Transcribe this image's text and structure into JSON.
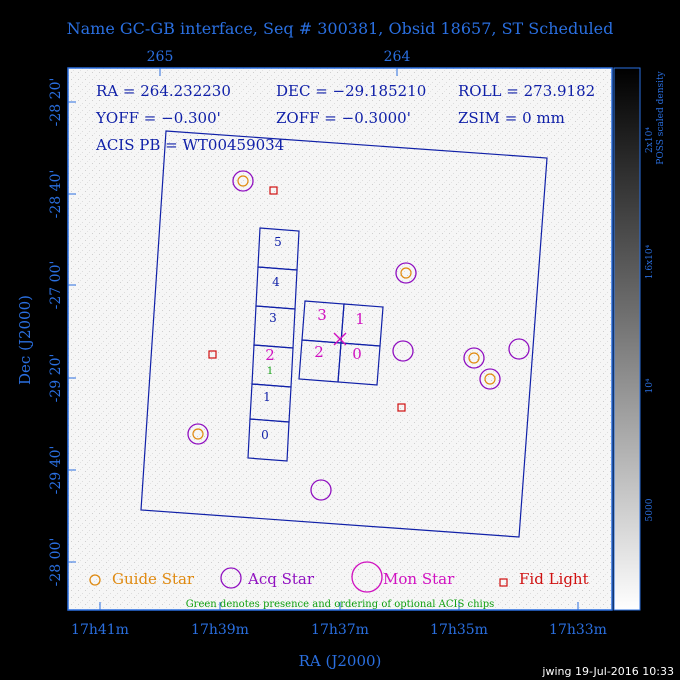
{
  "title": "Name GC-GB interface, Seq # 300381, Obsid 18657, ST Scheduled",
  "axes": {
    "top_ticks": [
      "265",
      "264"
    ],
    "left_ticks": [
      "-28 20'",
      "-28 40'",
      "-27 00'",
      "-29 20'",
      "-29 40'",
      "-28 00'"
    ],
    "bottom_ticks": [
      "17h41m",
      "17h39m",
      "17h37m",
      "17h35m",
      "17h33m"
    ],
    "xlabel": "RA (J2000)",
    "ylabel": "Dec (J2000)"
  },
  "info": {
    "ra": "RA = 264.232230",
    "dec": "DEC = −29.185210",
    "roll": "ROLL = 273.9182",
    "yoff": "YOFF = −0.300'",
    "zoff": "ZOFF = −0.3000'",
    "zsim": "ZSIM = 0 mm",
    "acis_pb": "ACIS PB = WT00459034"
  },
  "colorbar": {
    "label": "POSS scaled density",
    "ticks": [
      "2x10⁴",
      "1.6x10⁴",
      "10⁴",
      "5000"
    ]
  },
  "chips": {
    "left": [
      "5",
      "4",
      "3",
      "2",
      "1",
      "1",
      "0"
    ],
    "left_optional": "1",
    "center": [
      "3",
      "1",
      "2",
      "0"
    ]
  },
  "legend": {
    "guide": "Guide Star",
    "acq": "Acq Star",
    "mon": "Mon Star",
    "fid": "Fid Light"
  },
  "note": "Green denotes presence and ordering of optional ACIS chips",
  "credit": "jwing 19-Jul-2016 10:33",
  "colors": {
    "axis_text": "#2a6fe0",
    "info_text": "#1020a8",
    "guide": "#e08a10",
    "acq": "#9010c0",
    "mon": "#d010c0",
    "fid": "#d01010",
    "optional": "#10a010"
  }
}
